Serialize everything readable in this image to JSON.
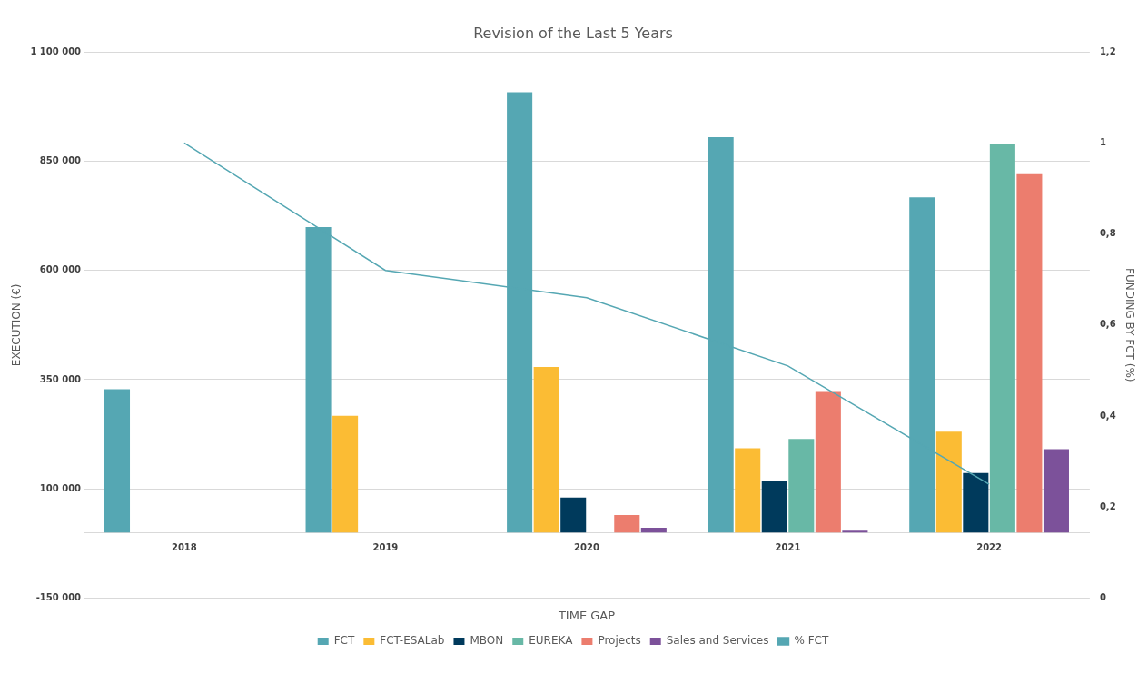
{
  "chart_data": {
    "type": "bar",
    "title": "Revision of the Last 5 Years",
    "xlabel": "TIME GAP",
    "ylabel": "EXECUTION (€)",
    "y2label": "FUNDING BY FCT (%)",
    "categories": [
      "2018",
      "2019",
      "2020",
      "2021",
      "2022"
    ],
    "series": [
      {
        "name": "FCT",
        "color": "#55a7b3",
        "values": [
          328000,
          699000,
          1008000,
          905000,
          767000
        ]
      },
      {
        "name": "FCT-ESALab",
        "color": "#fbbc34",
        "values": [
          null,
          267000,
          379000,
          193000,
          231000
        ]
      },
      {
        "name": "MBON",
        "color": "#003a5c",
        "values": [
          null,
          null,
          80000,
          117000,
          136000
        ]
      },
      {
        "name": "EUREKA",
        "color": "#68b8a6",
        "values": [
          null,
          null,
          null,
          214000,
          890000
        ]
      },
      {
        "name": "Projects",
        "color": "#ec7d6e",
        "values": [
          null,
          null,
          40000,
          324000,
          820000
        ]
      },
      {
        "name": "Sales and Services",
        "color": "#7c519a",
        "values": [
          null,
          null,
          11000,
          4000,
          191000
        ]
      },
      {
        "name": "% FCT",
        "type": "line",
        "axis": "y2",
        "color": "#55a7b3",
        "marker": "none",
        "values": [
          1.0,
          0.72,
          0.66,
          0.51,
          0.25
        ]
      }
    ],
    "ylim": [
      -150000,
      1100000
    ],
    "yticks": [
      {
        "value": -150000,
        "label": "-150 000"
      },
      {
        "value": 100000,
        "label": "100 000"
      },
      {
        "value": 350000,
        "label": "350 000"
      },
      {
        "value": 600000,
        "label": "600 000"
      },
      {
        "value": 850000,
        "label": "850 000"
      },
      {
        "value": 1100000,
        "label": "1 100 000"
      }
    ],
    "y2lim": [
      0,
      1.2
    ],
    "y2ticks": [
      0,
      {
        "value": 0.2,
        "label": "0,2"
      },
      {
        "value": 0.4,
        "label": "0,4"
      },
      {
        "value": 0.6,
        "label": "0,6"
      },
      {
        "value": 0.8,
        "label": "0,8"
      },
      1,
      {
        "value": 1.2,
        "label": "1,2"
      }
    ],
    "grid": "y",
    "legend": "bottom"
  }
}
